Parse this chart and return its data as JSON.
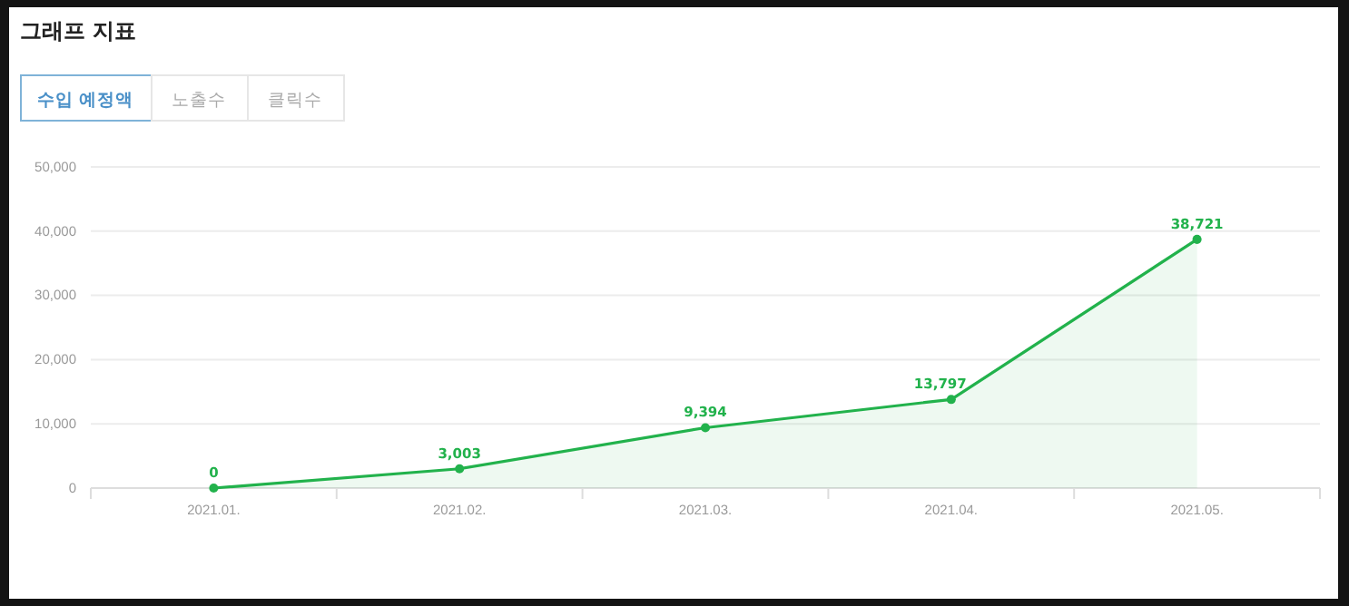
{
  "chart_data": {
    "type": "area",
    "title": "그래프 지표",
    "annotations": [
      "수입 예정액",
      "노출수",
      "클릭수"
    ],
    "categories": [
      "2021.01.",
      "2021.02.",
      "2021.03.",
      "2021.04.",
      "2021.05."
    ],
    "values": [
      0,
      3003,
      9394,
      13797,
      38721
    ],
    "color": "#22b24c",
    "ylim": [
      0,
      50000
    ],
    "yticks": [
      0,
      {
        "value": 10000,
        "label": "10,000"
      },
      {
        "value": 20000,
        "label": "20,000"
      },
      {
        "value": 30000,
        "label": "30,000"
      },
      {
        "value": 40000,
        "label": "40,000"
      },
      {
        "value": 50000,
        "label": "50,000"
      }
    ],
    "value_labels": [
      "0",
      "3,003",
      "9,394",
      "13,797",
      "38,721"
    ],
    "grid": "y",
    "marker": "circle"
  }
}
